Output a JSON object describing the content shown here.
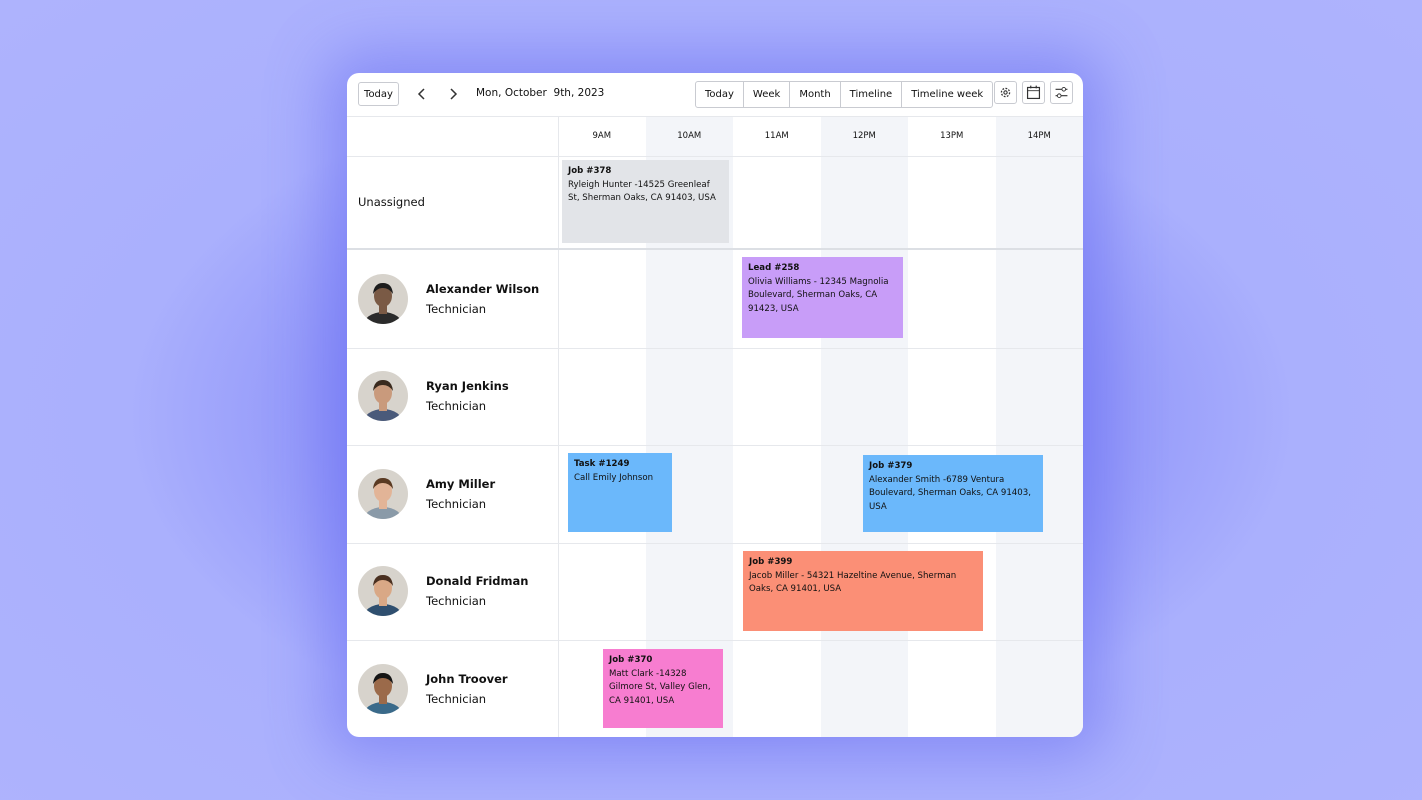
{
  "toolbar": {
    "today_button": "Today",
    "date": "Mon, October  9th, 2023",
    "views": [
      "Today",
      "Week",
      "Month",
      "Timeline",
      "Timeline week"
    ]
  },
  "timeline": {
    "hours": [
      "9AM",
      "10AM",
      "11AM",
      "12PM",
      "13PM",
      "14PM"
    ]
  },
  "rows": [
    {
      "label": "Unassigned",
      "events": [
        {
          "title": "Job #378",
          "text": "Ryleigh Hunter -14525 Greenleaf St, Sherman Oaks, CA 91403, USA"
        }
      ]
    },
    {
      "name": "Alexander Wilson",
      "role": "Technician",
      "events": [
        {
          "title": "Lead #258",
          "text": "Olivia Williams - 12345 Magnolia Boulevard, Sherman Oaks, CA 91423, USA"
        }
      ]
    },
    {
      "name": "Ryan Jenkins",
      "role": "Technician"
    },
    {
      "name": "Amy Miller",
      "role": "Technician",
      "events": [
        {
          "title": "Task #1249",
          "text": "Call Emily Johnson"
        },
        {
          "title": "Job #379",
          "text": "Alexander Smith -6789 Ventura Boulevard, Sherman Oaks, CA 91403, USA"
        }
      ]
    },
    {
      "name": "Donald Fridman",
      "role": "Technician",
      "events": [
        {
          "title": "Job #399",
          "text": "Jacob Miller - 54321 Hazeltine Avenue, Sherman Oaks, CA 91401, USA"
        }
      ]
    },
    {
      "name": "John Troover",
      "role": "Technician",
      "events": [
        {
          "title": "Job #370",
          "text": "Matt Clark -14328 Gilmore St, Valley Glen, CA 91401, USA"
        }
      ]
    }
  ]
}
